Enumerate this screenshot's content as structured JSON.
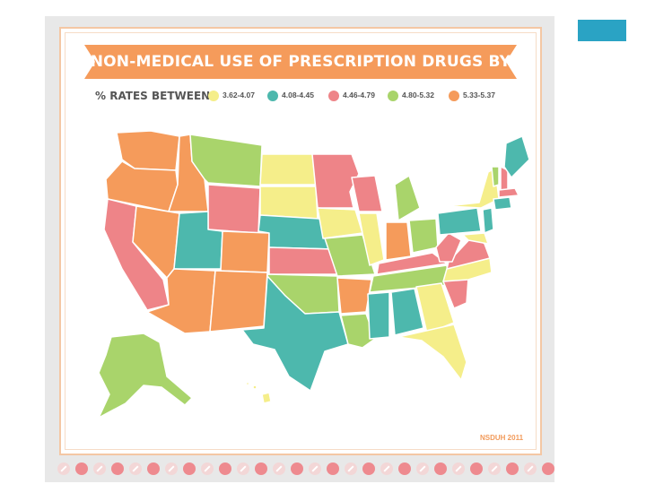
{
  "title": "NON-MEDICAL USE OF PRESCRIPTION DRUGS BY STATE",
  "legend": {
    "title": "% RATES BETWEEN:",
    "items": [
      {
        "range": "3.62-4.07",
        "color": "#f5ee8a"
      },
      {
        "range": "4.08-4.45",
        "color": "#4db8ad"
      },
      {
        "range": "4.46-4.79",
        "color": "#ee8488"
      },
      {
        "range": "4.80-5.32",
        "color": "#a9d46b"
      },
      {
        "range": "5.33-5.37",
        "color": "#f59b5b"
      }
    ]
  },
  "source": "NSDUH 2011",
  "colors": {
    "banner": "#f59b5b",
    "border": "#f4c7a4",
    "accent_tab": "#2aa3c4",
    "state_stroke": "#ffffff"
  },
  "states_by_range": {
    "3.62-4.07": [
      "ND",
      "SD",
      "IA",
      "IL",
      "NY",
      "GA",
      "FL",
      "HI",
      "NJ-adj",
      "MD"
    ],
    "4.08-4.45": [
      "UT",
      "NE",
      "TX",
      "MS",
      "AL",
      "PA",
      "NJ",
      "ME",
      "CT"
    ],
    "4.46-4.79": [
      "CA",
      "WY",
      "KS",
      "MN",
      "WI",
      "KY",
      "WV",
      "VA",
      "SC",
      "NH",
      "MA"
    ],
    "4.80-5.32": [
      "MT",
      "MO",
      "OK",
      "LA",
      "MI",
      "OH",
      "TN",
      "AK",
      "VT"
    ],
    "5.33-5.37": [
      "WA",
      "OR",
      "ID",
      "NV",
      "AZ",
      "NM",
      "CO",
      "IN",
      "AR"
    ]
  }
}
